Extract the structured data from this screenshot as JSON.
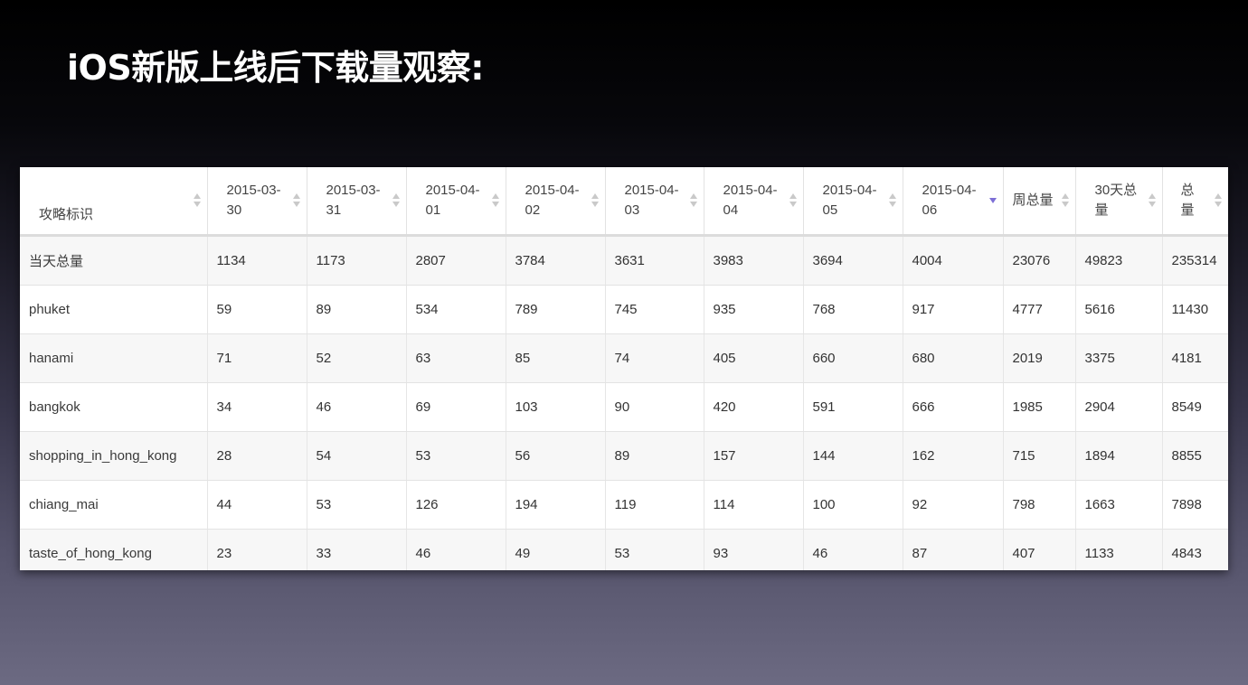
{
  "title": "iOS新版上线后下载量观察:",
  "sort_active_color": "#7d6fd6",
  "table": {
    "columns": [
      {
        "label": "攻略标识",
        "sort": "none"
      },
      {
        "label": "2015-03-30",
        "sort": "none"
      },
      {
        "label": "2015-03-31",
        "sort": "none"
      },
      {
        "label": "2015-04-01",
        "sort": "none"
      },
      {
        "label": "2015-04-02",
        "sort": "none"
      },
      {
        "label": "2015-04-03",
        "sort": "none"
      },
      {
        "label": "2015-04-04",
        "sort": "none"
      },
      {
        "label": "2015-04-05",
        "sort": "none"
      },
      {
        "label": "2015-04-06",
        "sort": "descending"
      },
      {
        "label": "周总量",
        "sort": "none"
      },
      {
        "label": "30天总量",
        "sort": "none"
      },
      {
        "label": "总量",
        "sort": "none"
      }
    ],
    "rows": [
      [
        "当天总量",
        "1134",
        "1173",
        "2807",
        "3784",
        "3631",
        "3983",
        "3694",
        "4004",
        "23076",
        "49823",
        "235314"
      ],
      [
        "phuket",
        "59",
        "89",
        "534",
        "789",
        "745",
        "935",
        "768",
        "917",
        "4777",
        "5616",
        "11430"
      ],
      [
        "hanami",
        "71",
        "52",
        "63",
        "85",
        "74",
        "405",
        "660",
        "680",
        "2019",
        "3375",
        "4181"
      ],
      [
        "bangkok",
        "34",
        "46",
        "69",
        "103",
        "90",
        "420",
        "591",
        "666",
        "1985",
        "2904",
        "8549"
      ],
      [
        "shopping_in_hong_kong",
        "28",
        "54",
        "53",
        "56",
        "89",
        "157",
        "144",
        "162",
        "715",
        "1894",
        "8855"
      ],
      [
        "chiang_mai",
        "44",
        "53",
        "126",
        "194",
        "119",
        "114",
        "100",
        "92",
        "798",
        "1663",
        "7898"
      ],
      [
        "taste_of_hong_kong",
        "23",
        "33",
        "46",
        "49",
        "53",
        "93",
        "46",
        "87",
        "407",
        "1133",
        "4843"
      ],
      [
        "",
        "",
        "",
        "",
        "",
        "",
        "",
        "",
        "",
        "",
        "",
        ""
      ]
    ]
  }
}
